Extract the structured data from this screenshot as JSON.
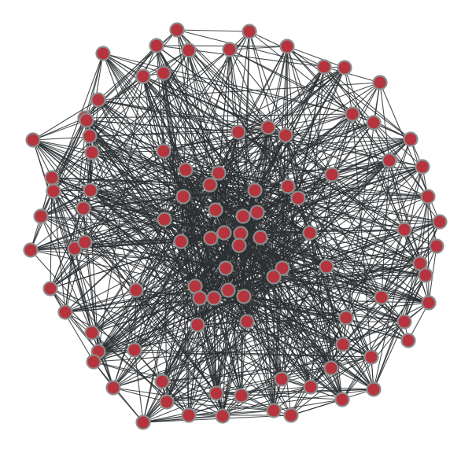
{
  "graph": {
    "colors": {
      "background": "#ffffff",
      "edge": "#2b2f31",
      "node_fill": "#b5343d",
      "node_stroke": "#8c8c8c"
    },
    "node_count": 100
  }
}
